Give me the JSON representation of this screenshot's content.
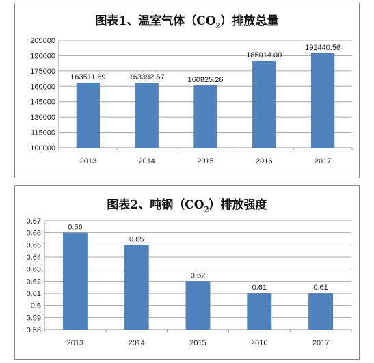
{
  "chart_data": [
    {
      "type": "bar",
      "title_parts": {
        "before": "图表1、温室气体（CO",
        "sub": "2",
        "after": "）排放总量"
      },
      "categories": [
        "2013",
        "2014",
        "2015",
        "2016",
        "2017"
      ],
      "values": [
        163511.69,
        163392.67,
        160825.26,
        185014.0,
        192440.56
      ],
      "data_labels": [
        "163511.69",
        "163392.67",
        "160825.26",
        "185014.00",
        "192440.56"
      ],
      "yticks": [
        "100000",
        "115000",
        "130000",
        "145000",
        "160000",
        "175000",
        "190000",
        "205000"
      ],
      "ylim": [
        100000,
        205000
      ],
      "grid": true,
      "bar_color": "#4f81bd"
    },
    {
      "type": "bar",
      "title_parts": {
        "before": "图表2、吨钢（CO",
        "sub": "2",
        "after": "）排放强度"
      },
      "categories": [
        "2013",
        "2014",
        "2015",
        "2016",
        "2017"
      ],
      "values": [
        0.66,
        0.65,
        0.62,
        0.61,
        0.61
      ],
      "data_labels": [
        "0.66",
        "0.65",
        "0.62",
        "0.61",
        "0.61"
      ],
      "yticks": [
        "0.58",
        "0.59",
        "0.6",
        "0.61",
        "0.62",
        "0.63",
        "0.64",
        "0.65",
        "0.66",
        "0.67"
      ],
      "ylim": [
        0.58,
        0.67
      ],
      "grid": true,
      "bar_color": "#4f81bd"
    }
  ]
}
